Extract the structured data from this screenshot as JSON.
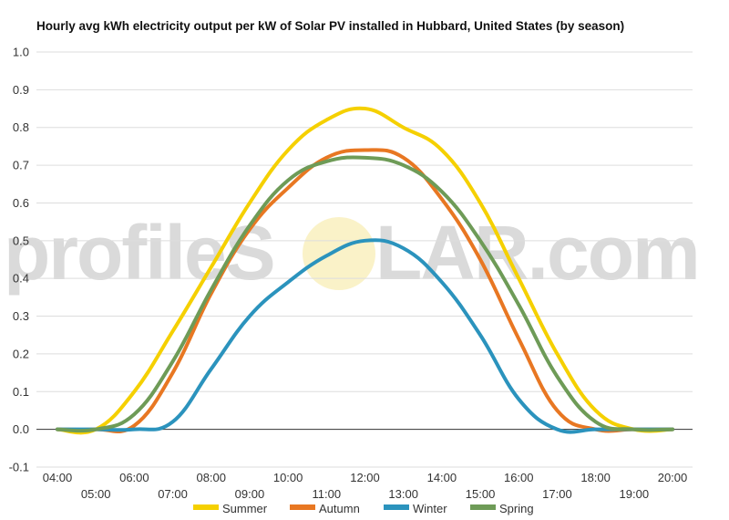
{
  "chart_data": {
    "type": "line",
    "title": "Hourly avg kWh electricity output per kW of Solar PV installed in Hubbard, United States (by season)",
    "xlabel": "",
    "ylabel": "",
    "ylim": [
      -0.1,
      1.0
    ],
    "yticks": [
      "-0.1",
      "0.0",
      "0.1",
      "0.2",
      "0.3",
      "0.4",
      "0.5",
      "0.6",
      "0.7",
      "0.8",
      "0.9",
      "1.0"
    ],
    "grid": true,
    "legend_position": "bottom",
    "categories": [
      "04:00",
      "05:00",
      "06:00",
      "07:00",
      "08:00",
      "09:00",
      "10:00",
      "11:00",
      "12:00",
      "13:00",
      "14:00",
      "15:00",
      "16:00",
      "17:00",
      "18:00",
      "19:00",
      "20:00"
    ],
    "series": [
      {
        "name": "Summer",
        "color": "#f5d000",
        "values": [
          0.0,
          0.0,
          0.1,
          0.26,
          0.43,
          0.6,
          0.74,
          0.82,
          0.85,
          0.8,
          0.74,
          0.6,
          0.4,
          0.2,
          0.05,
          0.0,
          0.0
        ]
      },
      {
        "name": "Autumn",
        "color": "#e87722",
        "values": [
          0.0,
          0.0,
          0.01,
          0.15,
          0.36,
          0.53,
          0.64,
          0.72,
          0.74,
          0.72,
          0.61,
          0.45,
          0.24,
          0.05,
          0.0,
          0.0,
          0.0
        ]
      },
      {
        "name": "Winter",
        "color": "#2b93bd",
        "values": [
          0.0,
          0.0,
          0.0,
          0.02,
          0.16,
          0.3,
          0.39,
          0.46,
          0.5,
          0.48,
          0.39,
          0.25,
          0.08,
          0.0,
          0.0,
          0.0,
          0.0
        ]
      },
      {
        "name": "Spring",
        "color": "#6e9b57",
        "values": [
          0.0,
          0.0,
          0.04,
          0.18,
          0.37,
          0.54,
          0.66,
          0.71,
          0.72,
          0.7,
          0.63,
          0.5,
          0.33,
          0.14,
          0.02,
          0.0,
          0.0
        ]
      }
    ]
  },
  "watermark": {
    "text_left": "profileS",
    "text_right": "LAR.com"
  }
}
